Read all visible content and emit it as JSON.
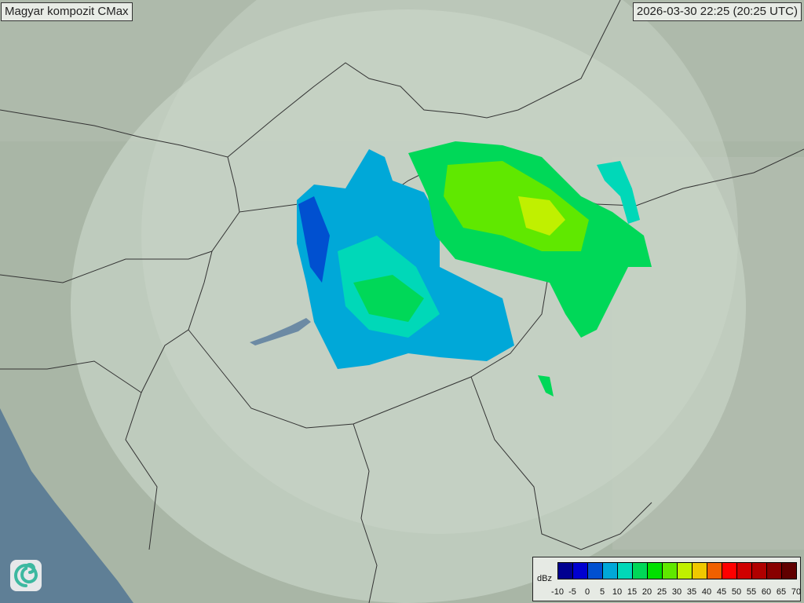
{
  "title": "Magyar kompozit  CMax",
  "timestamp": "2026-03-30 22:25 (20:25 UTC)",
  "legend": {
    "unit": "dBz",
    "ticks": [
      "-10",
      "-5",
      "0",
      "5",
      "10",
      "15",
      "20",
      "25",
      "30",
      "35",
      "40",
      "45",
      "50",
      "55",
      "60",
      "65",
      "70"
    ],
    "colors": [
      "#000090",
      "#0000d0",
      "#0050d0",
      "#00a8d8",
      "#00d8b8",
      "#00d858",
      "#00e000",
      "#60e800",
      "#c0f000",
      "#f0c800",
      "#f06000",
      "#ff0000",
      "#d00000",
      "#b00000",
      "#880000",
      "#600000"
    ]
  },
  "map": {
    "land_color": "#a9b6a6",
    "coverage_color": "#c6d2c4",
    "water_color": "#5f7f96",
    "border_color": "#333333",
    "logo_icon": "swirl-logo-icon"
  }
}
